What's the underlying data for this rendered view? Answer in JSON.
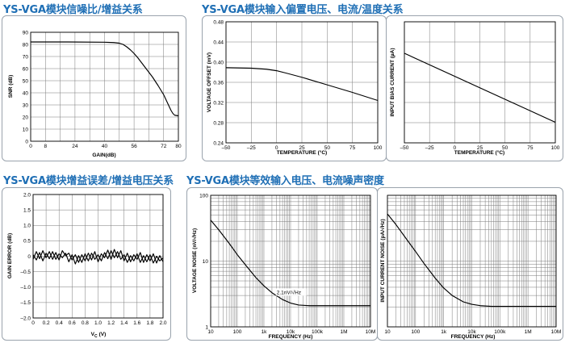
{
  "titles": {
    "snr_gain": "YS-VGA模块信噪比/增益关系",
    "offset_bias": "YS-VGA模块输入偏置电压、电流/温度关系",
    "gain_error": "YS-VGA模块增益误差/增益电压关系",
    "noise": "YS-VGA模块等效输入电压、电流噪声密度"
  },
  "chart_data": [
    {
      "id": "snr_gain",
      "type": "line",
      "xlabel": "GAIN(dB)",
      "ylabel": "SNR (dB)",
      "xlim": [
        0,
        80
      ],
      "ylim": [
        0,
        90
      ],
      "xticks": [
        0,
        8,
        24,
        40,
        56,
        72,
        80
      ],
      "xtick_labels": [
        "0",
        "8",
        "24",
        "40",
        "56",
        "72",
        "80"
      ],
      "yticks": [
        0,
        10,
        20,
        30,
        40,
        50,
        60,
        70,
        80,
        90
      ],
      "ytick_labels": [
        "0",
        "10",
        "20",
        "30",
        "40",
        "50",
        "60",
        "70",
        "80",
        "90"
      ],
      "xgrid": [
        0,
        8,
        16,
        24,
        32,
        40,
        48,
        56,
        64,
        72,
        80
      ],
      "ygrid": [
        0,
        10,
        20,
        30,
        40,
        50,
        60,
        70,
        80,
        90
      ],
      "series": [
        {
          "x": [
            0,
            20,
            40,
            45,
            48,
            50,
            52,
            54,
            56,
            58,
            60,
            63,
            66,
            69,
            72,
            74,
            76,
            77,
            78,
            80
          ],
          "y": [
            82,
            82,
            81.8,
            81.5,
            81,
            80,
            78,
            75.5,
            72.5,
            69,
            65,
            59,
            53,
            46,
            38.5,
            32,
            25.5,
            23,
            21.5,
            21
          ]
        }
      ]
    },
    {
      "id": "offset_voltage",
      "type": "line",
      "xlabel": "TEMPERATURE (°C)",
      "ylabel": "VOLTAGE OFFSET (mV)",
      "xlim": [
        -50,
        100
      ],
      "ylim": [
        0.24,
        0.48
      ],
      "xticks": [
        -50,
        -25,
        0,
        25,
        50,
        75,
        100
      ],
      "xtick_labels": [
        "–50",
        "–25",
        "0",
        "25",
        "50",
        "75",
        "100"
      ],
      "yticks": [
        0.24,
        0.28,
        0.32,
        0.36,
        0.4,
        0.44,
        0.48
      ],
      "ytick_labels": [
        "0.24",
        "0.28",
        "0.32",
        "0.36",
        "0.40",
        "0.44",
        "0.48"
      ],
      "xgrid": [
        -50,
        -25,
        0,
        25,
        50,
        75,
        100
      ],
      "ygrid": [
        0.24,
        0.28,
        0.32,
        0.36,
        0.4,
        0.44,
        0.48
      ],
      "series": [
        {
          "x": [
            -50,
            -25,
            -10,
            0,
            10,
            25,
            50,
            75,
            100
          ],
          "y": [
            0.389,
            0.388,
            0.386,
            0.383,
            0.378,
            0.37,
            0.355,
            0.34,
            0.324
          ]
        }
      ]
    },
    {
      "id": "bias_current",
      "type": "line",
      "xlabel": "TEMPERATURE (°C)",
      "ylabel": "INPUT BIAS CURRENT (µA)",
      "xlim": [
        -50,
        100
      ],
      "ylim": [
        0,
        100
      ],
      "xticks": [
        -50,
        -25,
        0,
        25,
        50,
        75,
        100
      ],
      "xtick_labels": [
        "–50",
        "–25",
        "0",
        "25",
        "50",
        "75",
        "100"
      ],
      "yticks": [],
      "ytick_labels": [],
      "xgrid": [
        -50,
        -25,
        0,
        25,
        50,
        75,
        100
      ],
      "ygrid": [
        0,
        16.67,
        33.33,
        50,
        66.67,
        83.33,
        100
      ],
      "series": [
        {
          "x": [
            -50,
            100
          ],
          "y": [
            74,
            17
          ]
        }
      ]
    },
    {
      "id": "gain_error",
      "type": "line",
      "xlabel": "V",
      "xlabel_sub": "C",
      "xlabel_unit": "(V)",
      "ylabel": "GAIN ERROR (dB)",
      "xlim": [
        0,
        2
      ],
      "ylim": [
        -2,
        2
      ],
      "xticks": [
        0,
        0.2,
        0.4,
        0.6,
        0.8,
        1.0,
        1.2,
        1.4,
        1.6,
        1.8,
        2.0
      ],
      "xtick_labels": [
        "0",
        "0.2",
        "0.4",
        "0.6",
        "0.8",
        "1.0",
        "1.2",
        "1.4",
        "1.6",
        "1.8",
        "2.0"
      ],
      "yticks": [
        -2.0,
        -1.5,
        -1.0,
        -0.5,
        0,
        0.5,
        1.0,
        1.5,
        2.0
      ],
      "ytick_labels": [
        "–2.0",
        "–1.5",
        "–1.0",
        "–0.5",
        "0",
        "0.5",
        "1.0",
        "1.5",
        "2.0"
      ],
      "xgrid": [
        0,
        0.2,
        0.4,
        0.6,
        0.8,
        1.0,
        1.2,
        1.4,
        1.6,
        1.8,
        2.0
      ],
      "ygrid": [
        -2.0,
        -1.5,
        -1.0,
        -0.5,
        0,
        0.5,
        1.0,
        1.5,
        2.0
      ],
      "series": [
        {
          "x": [
            0,
            0.05,
            0.1,
            0.15,
            0.2,
            0.25,
            0.3,
            0.35,
            0.4,
            0.45,
            0.5,
            0.55,
            0.6,
            0.65,
            0.7,
            0.75,
            0.8,
            0.85,
            0.9,
            0.95,
            1.0,
            1.05,
            1.1,
            1.15,
            1.2,
            1.25,
            1.3,
            1.35,
            1.4,
            1.45,
            1.5,
            1.55,
            1.6,
            1.65,
            1.7,
            1.75,
            1.8,
            1.85,
            1.9,
            1.95,
            2.0
          ],
          "y": [
            -0.1,
            0.15,
            -0.08,
            0.18,
            -0.05,
            0.15,
            -0.1,
            0.12,
            -0.12,
            0.18,
            0.02,
            0.1,
            -0.12,
            0.05,
            -0.2,
            0.05,
            -0.15,
            0.1,
            -0.12,
            0.15,
            -0.18,
            0.08,
            -0.05,
            0.2,
            -0.1,
            0.22,
            -0.05,
            0.18,
            -0.15,
            0.1,
            -0.18,
            0.05,
            -0.1,
            0.12,
            -0.2,
            0.05,
            -0.15,
            0.08,
            -0.22,
            0.02,
            -0.18
          ]
        },
        {
          "x": [
            0,
            0.05,
            0.1,
            0.15,
            0.2,
            0.25,
            0.3,
            0.35,
            0.4,
            0.45,
            0.5,
            0.55,
            0.6,
            0.65,
            0.7,
            0.75,
            0.8,
            0.85,
            0.9,
            0.95,
            1.0,
            1.05,
            1.1,
            1.15,
            1.2,
            1.25,
            1.3,
            1.35,
            1.4,
            1.45,
            1.5,
            1.55,
            1.6,
            1.65,
            1.7,
            1.75,
            1.8,
            1.85,
            1.9,
            1.95,
            2.0
          ],
          "y": [
            0.05,
            -0.12,
            0.12,
            -0.15,
            0.1,
            -0.08,
            0.15,
            -0.1,
            0.08,
            -0.05,
            0.1,
            -0.18,
            0.05,
            -0.25,
            0.02,
            -0.2,
            0.08,
            -0.15,
            0.1,
            -0.1,
            0.05,
            -0.15,
            0.12,
            -0.08,
            0.18,
            -0.05,
            0.15,
            -0.1,
            0.05,
            -0.2,
            0.02,
            -0.15,
            0.08,
            -0.2,
            0.02,
            -0.18,
            0.05,
            -0.22,
            0.0,
            -0.15,
            -0.05
          ]
        }
      ]
    },
    {
      "id": "voltage_noise",
      "type": "line",
      "xscale": "log",
      "yscale": "log",
      "xlabel": "FREQUENCY (Hz)",
      "ylabel": "VOLTAGE NOISE (nV/√Hz)",
      "xlim": [
        10,
        10000000
      ],
      "ylim": [
        1,
        100
      ],
      "xticks": [
        10,
        100,
        1000,
        10000,
        100000,
        1000000,
        10000000
      ],
      "xtick_labels": [
        "10",
        "100",
        "1k",
        "10k",
        "100k",
        "1M",
        "10M"
      ],
      "yticks": [
        1,
        10,
        100
      ],
      "ytick_labels": [
        "1",
        "10",
        "100"
      ],
      "annotation": "2.1nV/√Hz",
      "series": [
        {
          "x": [
            10,
            20,
            50,
            100,
            200,
            500,
            1000,
            2000,
            5000,
            10000,
            20000,
            50000,
            100000,
            1000000,
            10000000
          ],
          "y": [
            42,
            30,
            18.5,
            12.5,
            8.8,
            5.6,
            4.2,
            3.3,
            2.6,
            2.3,
            2.15,
            2.1,
            2.1,
            2.1,
            2.1
          ]
        }
      ]
    },
    {
      "id": "current_noise",
      "type": "line",
      "xscale": "log",
      "yscale": "log",
      "xlabel": "FREQUENCY (Hz)",
      "ylabel": "INPUT CURRENT NOISE (pA/√Hz)",
      "xlim": [
        10,
        10000000
      ],
      "ylim": [
        1,
        100
      ],
      "xticks": [
        10,
        100,
        1000,
        10000,
        100000,
        1000000,
        10000000
      ],
      "xtick_labels": [
        "10",
        "100",
        "1k",
        "10k",
        "100k",
        "1M",
        "10M"
      ],
      "yticks": [],
      "ytick_labels": [],
      "series": [
        {
          "x": [
            10,
            20,
            50,
            100,
            200,
            500,
            1000,
            2000,
            5000,
            10000,
            20000,
            50000,
            100000,
            1000000,
            10000000
          ],
          "y": [
            52,
            36,
            21,
            14,
            9.2,
            5.5,
            3.9,
            3.0,
            2.4,
            2.2,
            2.1,
            2.05,
            2.05,
            2.05,
            2.05
          ]
        }
      ]
    }
  ]
}
